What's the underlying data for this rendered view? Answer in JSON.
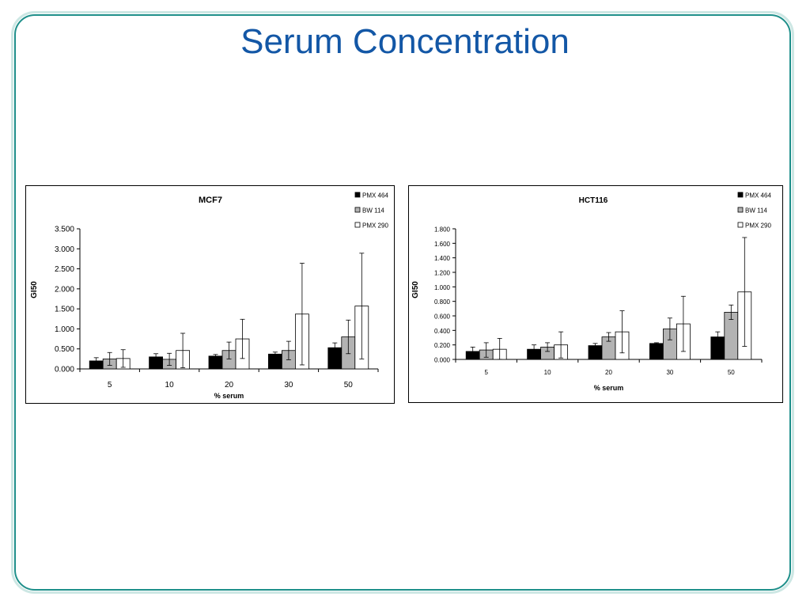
{
  "slide": {
    "title": "Serum Concentration"
  },
  "colors": {
    "title": "#1357a6",
    "frame_inner": "#1e8f8a",
    "frame_outer": "#cde7e4",
    "series": [
      "#000000",
      "#b3b3b3",
      "#ffffff"
    ]
  },
  "chart_data": [
    {
      "type": "bar",
      "title": "MCF7",
      "xlabel": "% serum",
      "ylabel": "GI50",
      "categories": [
        "5",
        "10",
        "20",
        "30",
        "50"
      ],
      "ylim": [
        0,
        3.5
      ],
      "yticks": [
        "0.000",
        "0.500",
        "1.000",
        "1.500",
        "2.000",
        "2.500",
        "3.000",
        "3.500"
      ],
      "legend_position": "top-right",
      "grid": false,
      "series": [
        {
          "name": "PMX 464",
          "values": [
            0.2,
            0.3,
            0.32,
            0.37,
            0.53
          ],
          "errors": [
            0.08,
            0.08,
            0.04,
            0.05,
            0.12
          ]
        },
        {
          "name": "BW 114",
          "values": [
            0.25,
            0.24,
            0.46,
            0.46,
            0.8
          ],
          "errors": [
            0.16,
            0.15,
            0.21,
            0.23,
            0.42
          ]
        },
        {
          "name": "PMX 290",
          "values": [
            0.26,
            0.46,
            0.75,
            1.37,
            1.57
          ],
          "errors": [
            0.22,
            0.43,
            0.49,
            1.27,
            1.32
          ]
        }
      ]
    },
    {
      "type": "bar",
      "title": "HCT116",
      "xlabel": "% serum",
      "ylabel": "GI50",
      "categories": [
        "5",
        "10",
        "20",
        "30",
        "50"
      ],
      "ylim": [
        0,
        1.8
      ],
      "yticks": [
        "0.000",
        "0.200",
        "0.400",
        "0.600",
        "0.800",
        "1.000",
        "1.200",
        "1.400",
        "1.600",
        "1.800"
      ],
      "legend_position": "top-right",
      "grid": false,
      "series": [
        {
          "name": "PMX 464",
          "values": [
            0.11,
            0.14,
            0.19,
            0.22,
            0.31
          ],
          "errors": [
            0.06,
            0.06,
            0.03,
            0.01,
            0.07
          ]
        },
        {
          "name": "BW 114",
          "values": [
            0.13,
            0.17,
            0.31,
            0.42,
            0.65
          ],
          "errors": [
            0.1,
            0.06,
            0.06,
            0.15,
            0.1
          ]
        },
        {
          "name": "PMX 290",
          "values": [
            0.14,
            0.2,
            0.38,
            0.49,
            0.93
          ],
          "errors": [
            0.15,
            0.18,
            0.29,
            0.38,
            0.75
          ]
        }
      ]
    }
  ]
}
